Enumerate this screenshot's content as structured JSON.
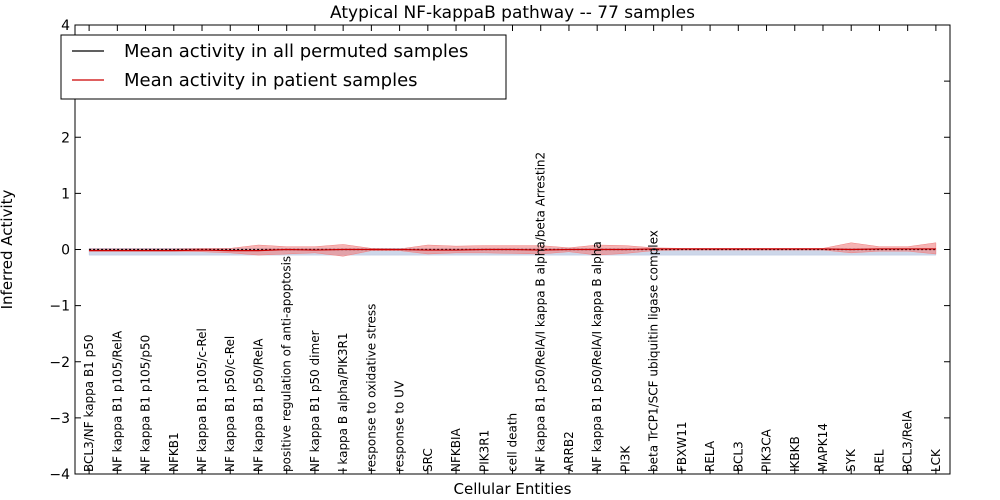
{
  "chart_data": {
    "type": "line",
    "title": "Atypical NF-kappaB pathway -- 77 samples",
    "xlabel": "Cellular Entities",
    "ylabel": "Inferred Activity",
    "ylim": [
      -4,
      4
    ],
    "yticks": [
      "4",
      "3",
      "2",
      "1",
      "0",
      "−1",
      "−2",
      "−3",
      "−4"
    ],
    "grid": false,
    "legend_position": "top-left",
    "categories": [
      "BCL3/NF kappa B1 p50",
      "NF kappa B1 p105/RelA",
      "NF kappa B1 p105/p50",
      "NFKB1",
      "NF kappa B1 p105/c-Rel",
      "NF kappa B1 p50/c-Rel",
      "NF kappa B1 p50/RelA",
      "positive regulation of anti-apoptosis",
      "NF kappa B1 p50 dimer",
      "I kappa B alpha/PIK3R1",
      "response to oxidative stress",
      "response to UV",
      "SRC",
      "NFKBIA",
      "PIK3R1",
      "cell death",
      "NF kappa B1 p50/RelA/I kappa B alpha/beta Arrestin2",
      "ARRB2",
      "NF kappa B1 p50/RelA/I kappa B alpha",
      "PI3K",
      "beta TrCP1/SCF ubiquitin ligase complex",
      "FBXW11",
      "RELA",
      "BCL3",
      "PIK3CA",
      "IKBKB",
      "MAPK14",
      "SYK",
      "REL",
      "BCL3/RelA",
      "LCK"
    ],
    "series": [
      {
        "name": "Mean activity in all permuted samples",
        "color": "#000000",
        "values": [
          0,
          0,
          0,
          0,
          0,
          0,
          0,
          0,
          0,
          0,
          0,
          0,
          0,
          0,
          0,
          0,
          0,
          0,
          0,
          0,
          0,
          0,
          0,
          0,
          0,
          0,
          0,
          0,
          0,
          0,
          0
        ],
        "band_upper": [
          0.02,
          0.02,
          0.02,
          0.02,
          0.02,
          0.02,
          0.02,
          0.02,
          0.02,
          0.02,
          0.02,
          0.02,
          0.02,
          0.02,
          0.02,
          0.02,
          0.02,
          0.02,
          0.02,
          0.02,
          0.02,
          0.02,
          0.02,
          0.02,
          0.02,
          0.02,
          0.02,
          0.02,
          0.02,
          0.02,
          0.02
        ],
        "band_lower": [
          -0.1,
          -0.1,
          -0.1,
          -0.1,
          -0.1,
          -0.1,
          -0.1,
          -0.1,
          -0.1,
          -0.1,
          -0.1,
          -0.1,
          -0.1,
          -0.1,
          -0.1,
          -0.1,
          -0.1,
          -0.1,
          -0.1,
          -0.1,
          -0.1,
          -0.1,
          -0.1,
          -0.1,
          -0.1,
          -0.1,
          -0.1,
          -0.1,
          -0.1,
          -0.1,
          -0.1
        ],
        "band_color": "#b8c6df"
      },
      {
        "name": "Mean activity in patient samples",
        "color": "#cc0000",
        "values": [
          -0.02,
          -0.02,
          -0.02,
          -0.02,
          -0.01,
          -0.02,
          -0.02,
          0,
          -0.01,
          0,
          0,
          0,
          -0.01,
          -0.01,
          0,
          0,
          -0.01,
          0,
          0,
          0,
          0.01,
          0.01,
          0.01,
          0.01,
          0.01,
          0.01,
          0.01,
          0,
          0.01,
          0.01,
          0.01
        ],
        "band_upper": [
          0.01,
          0.01,
          0.01,
          0.01,
          0.02,
          0.02,
          0.08,
          0.05,
          0.05,
          0.09,
          0.02,
          0.01,
          0.08,
          0.06,
          0.07,
          0.07,
          0.07,
          0.03,
          0.08,
          0.07,
          0.03,
          0.02,
          0.02,
          0.02,
          0.02,
          0.02,
          0.02,
          0.12,
          0.05,
          0.05,
          0.12
        ],
        "band_lower": [
          -0.03,
          -0.03,
          -0.03,
          -0.03,
          -0.04,
          -0.06,
          -0.1,
          -0.08,
          -0.06,
          -0.12,
          -0.02,
          -0.02,
          -0.08,
          -0.06,
          -0.06,
          -0.07,
          -0.08,
          -0.04,
          -0.1,
          -0.07,
          -0.02,
          -0.01,
          -0.01,
          -0.01,
          -0.01,
          -0.01,
          -0.01,
          -0.06,
          -0.03,
          -0.03,
          -0.08
        ],
        "band_color": "#f08080"
      }
    ]
  }
}
